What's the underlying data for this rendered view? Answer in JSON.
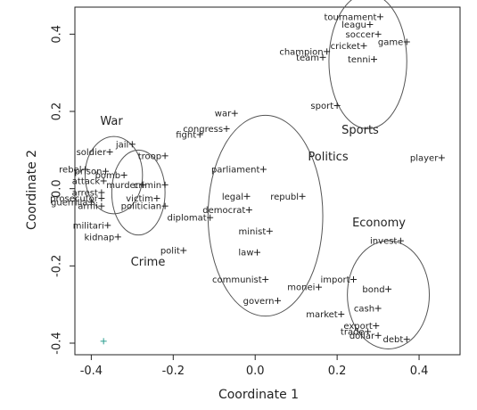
{
  "chart_data": {
    "type": "scatter",
    "title": "",
    "xlabel": "Coordinate 1",
    "ylabel": "Coordinate 2",
    "xlim": [
      -0.44,
      0.5
    ],
    "ylim": [
      -0.43,
      0.47
    ],
    "xticks": [
      -0.4,
      -0.2,
      0.0,
      0.2,
      0.4
    ],
    "yticks": [
      -0.4,
      -0.2,
      0.0,
      0.2,
      0.4
    ],
    "xtick_labels": [
      "-0.4",
      "-0.2",
      "0.0",
      "0.2",
      "0.4"
    ],
    "ytick_labels": [
      "-0.4",
      "-0.2",
      "0.0",
      "0.2",
      "0.4"
    ],
    "grid": false,
    "colors": {
      "points": "#222222",
      "ellipses": "#555555",
      "accent_point": "#2a9d8f"
    },
    "groups": [
      {
        "label": "War",
        "cx": -0.345,
        "cy": 0.035,
        "rx": 0.07,
        "ry": 0.1
      },
      {
        "label": "Crime",
        "cx": -0.285,
        "cy": -0.01,
        "rx": 0.065,
        "ry": 0.11
      },
      {
        "label": "Politics",
        "cx": 0.025,
        "cy": -0.07,
        "rx": 0.14,
        "ry": 0.26
      },
      {
        "label": "Sports",
        "cx": 0.275,
        "cy": 0.33,
        "rx": 0.095,
        "ry": 0.175
      },
      {
        "label": "Economy",
        "cx": 0.325,
        "cy": -0.275,
        "rx": 0.1,
        "ry": 0.14
      }
    ],
    "points": [
      {
        "word": "tournament",
        "x": 0.305,
        "y": 0.445
      },
      {
        "word": "leagu",
        "x": 0.28,
        "y": 0.425
      },
      {
        "word": "soccer",
        "x": 0.3,
        "y": 0.4
      },
      {
        "word": "champion",
        "x": 0.175,
        "y": 0.355
      },
      {
        "word": "cricket",
        "x": 0.265,
        "y": 0.37
      },
      {
        "word": "game",
        "x": 0.37,
        "y": 0.38
      },
      {
        "word": "team",
        "x": 0.165,
        "y": 0.34
      },
      {
        "word": "tenni",
        "x": 0.29,
        "y": 0.335
      },
      {
        "word": "sport",
        "x": 0.2,
        "y": 0.215
      },
      {
        "word": "war",
        "x": -0.05,
        "y": 0.195
      },
      {
        "word": "fight",
        "x": -0.135,
        "y": 0.14
      },
      {
        "word": "congress",
        "x": -0.07,
        "y": 0.155
      },
      {
        "word": "soldier",
        "x": -0.355,
        "y": 0.095
      },
      {
        "word": "jail",
        "x": -0.3,
        "y": 0.115
      },
      {
        "word": "troop",
        "x": -0.22,
        "y": 0.085
      },
      {
        "word": "rebel",
        "x": -0.415,
        "y": 0.05
      },
      {
        "word": "prison",
        "x": -0.365,
        "y": 0.045
      },
      {
        "word": "bomb",
        "x": -0.32,
        "y": 0.035
      },
      {
        "word": "attack",
        "x": -0.37,
        "y": 0.02
      },
      {
        "word": "murder",
        "x": -0.275,
        "y": 0.01
      },
      {
        "word": "crimin",
        "x": -0.22,
        "y": 0.01
      },
      {
        "word": "arrest",
        "x": -0.375,
        "y": -0.01
      },
      {
        "word": "victim",
        "x": -0.24,
        "y": -0.025
      },
      {
        "word": "prosecutor",
        "x": -0.375,
        "y": -0.025
      },
      {
        "word": "guerrilla",
        "x": -0.4,
        "y": -0.035
      },
      {
        "word": "armi",
        "x": -0.375,
        "y": -0.045
      },
      {
        "word": "politician",
        "x": -0.22,
        "y": -0.045
      },
      {
        "word": "diplomat",
        "x": -0.11,
        "y": -0.075
      },
      {
        "word": "militari",
        "x": -0.36,
        "y": -0.095
      },
      {
        "word": "kidnap",
        "x": -0.335,
        "y": -0.125
      },
      {
        "word": "polit",
        "x": -0.175,
        "y": -0.16
      },
      {
        "word": "parliament",
        "x": 0.02,
        "y": 0.05
      },
      {
        "word": "legal",
        "x": -0.02,
        "y": -0.02
      },
      {
        "word": "republ",
        "x": 0.115,
        "y": -0.02
      },
      {
        "word": "democrat",
        "x": -0.015,
        "y": -0.055
      },
      {
        "word": "minist",
        "x": 0.035,
        "y": -0.11
      },
      {
        "word": "law",
        "x": 0.005,
        "y": -0.165
      },
      {
        "word": "communist",
        "x": 0.025,
        "y": -0.235
      },
      {
        "word": "govern",
        "x": 0.055,
        "y": -0.29
      },
      {
        "word": "invest",
        "x": 0.355,
        "y": -0.135
      },
      {
        "word": "player",
        "x": 0.455,
        "y": 0.08
      },
      {
        "word": "import",
        "x": 0.24,
        "y": -0.235
      },
      {
        "word": "monei",
        "x": 0.155,
        "y": -0.255
      },
      {
        "word": "bond",
        "x": 0.325,
        "y": -0.26
      },
      {
        "word": "cash",
        "x": 0.3,
        "y": -0.31
      },
      {
        "word": "market",
        "x": 0.21,
        "y": -0.325
      },
      {
        "word": "export",
        "x": 0.295,
        "y": -0.355
      },
      {
        "word": "trade",
        "x": 0.275,
        "y": -0.37
      },
      {
        "word": "dollar",
        "x": 0.3,
        "y": -0.38
      },
      {
        "word": "debt",
        "x": 0.37,
        "y": -0.39
      },
      {
        "word": "",
        "x": -0.37,
        "y": -0.395,
        "accent": true
      }
    ]
  }
}
